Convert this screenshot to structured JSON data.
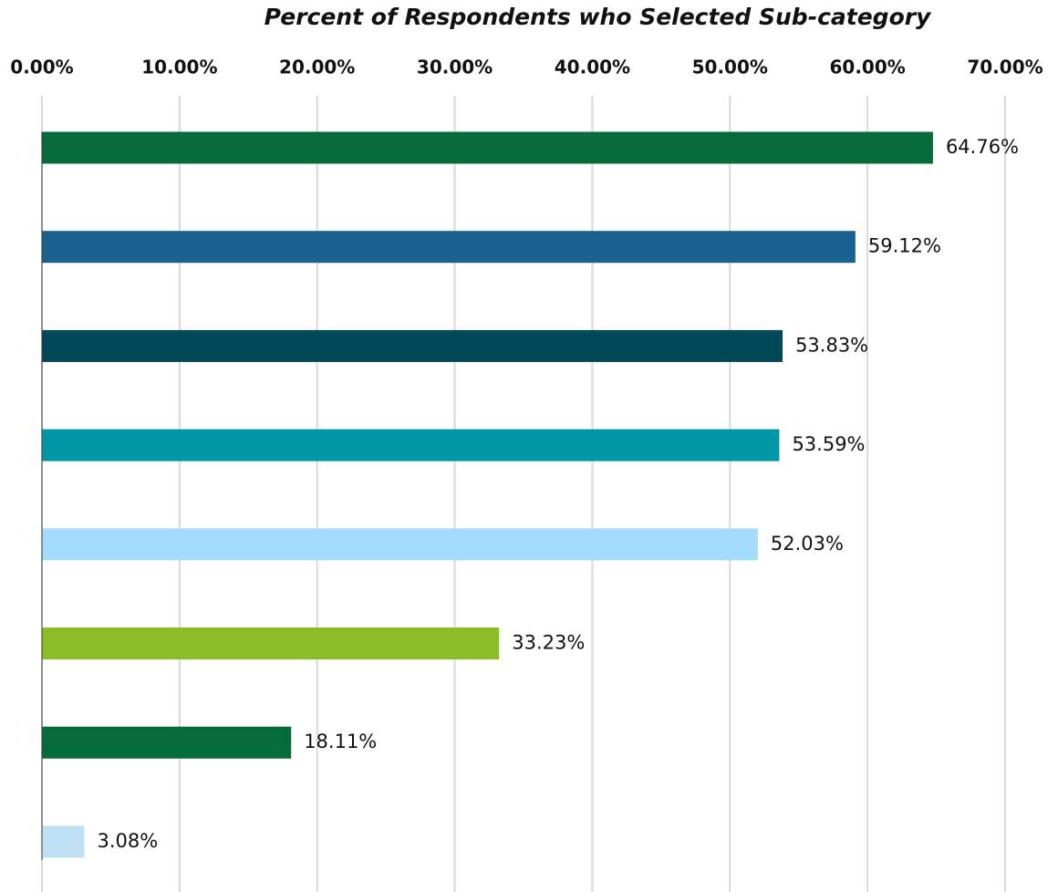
{
  "chart_data": {
    "type": "hbar",
    "title": "Percent of Respondents who Selected Sub-category",
    "values": [
      64.76,
      59.12,
      53.83,
      53.59,
      52.03,
      33.23,
      18.11,
      3.08
    ],
    "value_labels": [
      "64.76%",
      "59.12%",
      "53.83%",
      "53.59%",
      "52.03%",
      "33.23%",
      "18.11%",
      "3.08%"
    ],
    "colors": [
      "#066d3a",
      "#1a618d",
      "#014857",
      "#0097a7",
      "#a3dcfd",
      "#8abd28",
      "#066d3a",
      "#c0e0f5"
    ],
    "xlim": [
      0,
      70
    ],
    "xticks": [
      {
        "value": 0,
        "label": "0.00%"
      },
      {
        "value": 10,
        "label": "10.00%"
      },
      {
        "value": 20,
        "label": "20.00%"
      },
      {
        "value": 30,
        "label": "30.00%"
      },
      {
        "value": 40,
        "label": "40.00%"
      },
      {
        "value": 50,
        "label": "50.00%"
      },
      {
        "value": 60,
        "label": "60.00%"
      },
      {
        "value": 70,
        "label": "70.00%"
      }
    ],
    "grid": true
  }
}
